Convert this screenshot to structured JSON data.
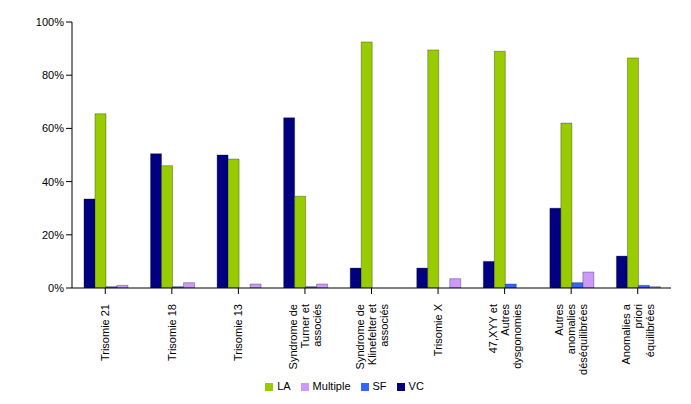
{
  "chart_data": {
    "type": "bar",
    "categories": [
      "Trisomie 21",
      "Trisomie 18",
      "Trisomie 13",
      "Syndrome de Turner et associés",
      "Syndrome de Klinefelter et associés",
      "Trisomie X",
      "47,XYY et Autres dysgonomies",
      "Autres anomalies déséquilibrées",
      "Anomalies a priori équilibrées"
    ],
    "series": [
      {
        "name": "VC",
        "color": "#000080",
        "values": [
          33.5,
          50.5,
          50,
          64,
          7.5,
          7.5,
          10,
          30,
          12
        ]
      },
      {
        "name": "LA",
        "color": "#99cc00",
        "values": [
          65.5,
          46,
          48.5,
          34.5,
          92.5,
          89.5,
          89,
          62,
          86.5
        ]
      },
      {
        "name": "SF",
        "color": "#3366ff",
        "values": [
          0.5,
          0.5,
          0,
          0.5,
          0,
          0,
          1.5,
          2,
          1
        ]
      },
      {
        "name": "Multiple",
        "color": "#cc99ff",
        "values": [
          1,
          2,
          1.5,
          1.5,
          0,
          3.5,
          0,
          6,
          0.5
        ]
      }
    ],
    "ylim": [
      0,
      100
    ],
    "yticks": [
      {
        "value": 0,
        "label": "0%"
      },
      {
        "value": 20,
        "label": "20%"
      },
      {
        "value": 40,
        "label": "40%"
      },
      {
        "value": 60,
        "label": "60%"
      },
      {
        "value": 80,
        "label": "80%"
      },
      {
        "value": 100,
        "label": "100%"
      }
    ],
    "grid": false,
    "legend": "bottom"
  }
}
